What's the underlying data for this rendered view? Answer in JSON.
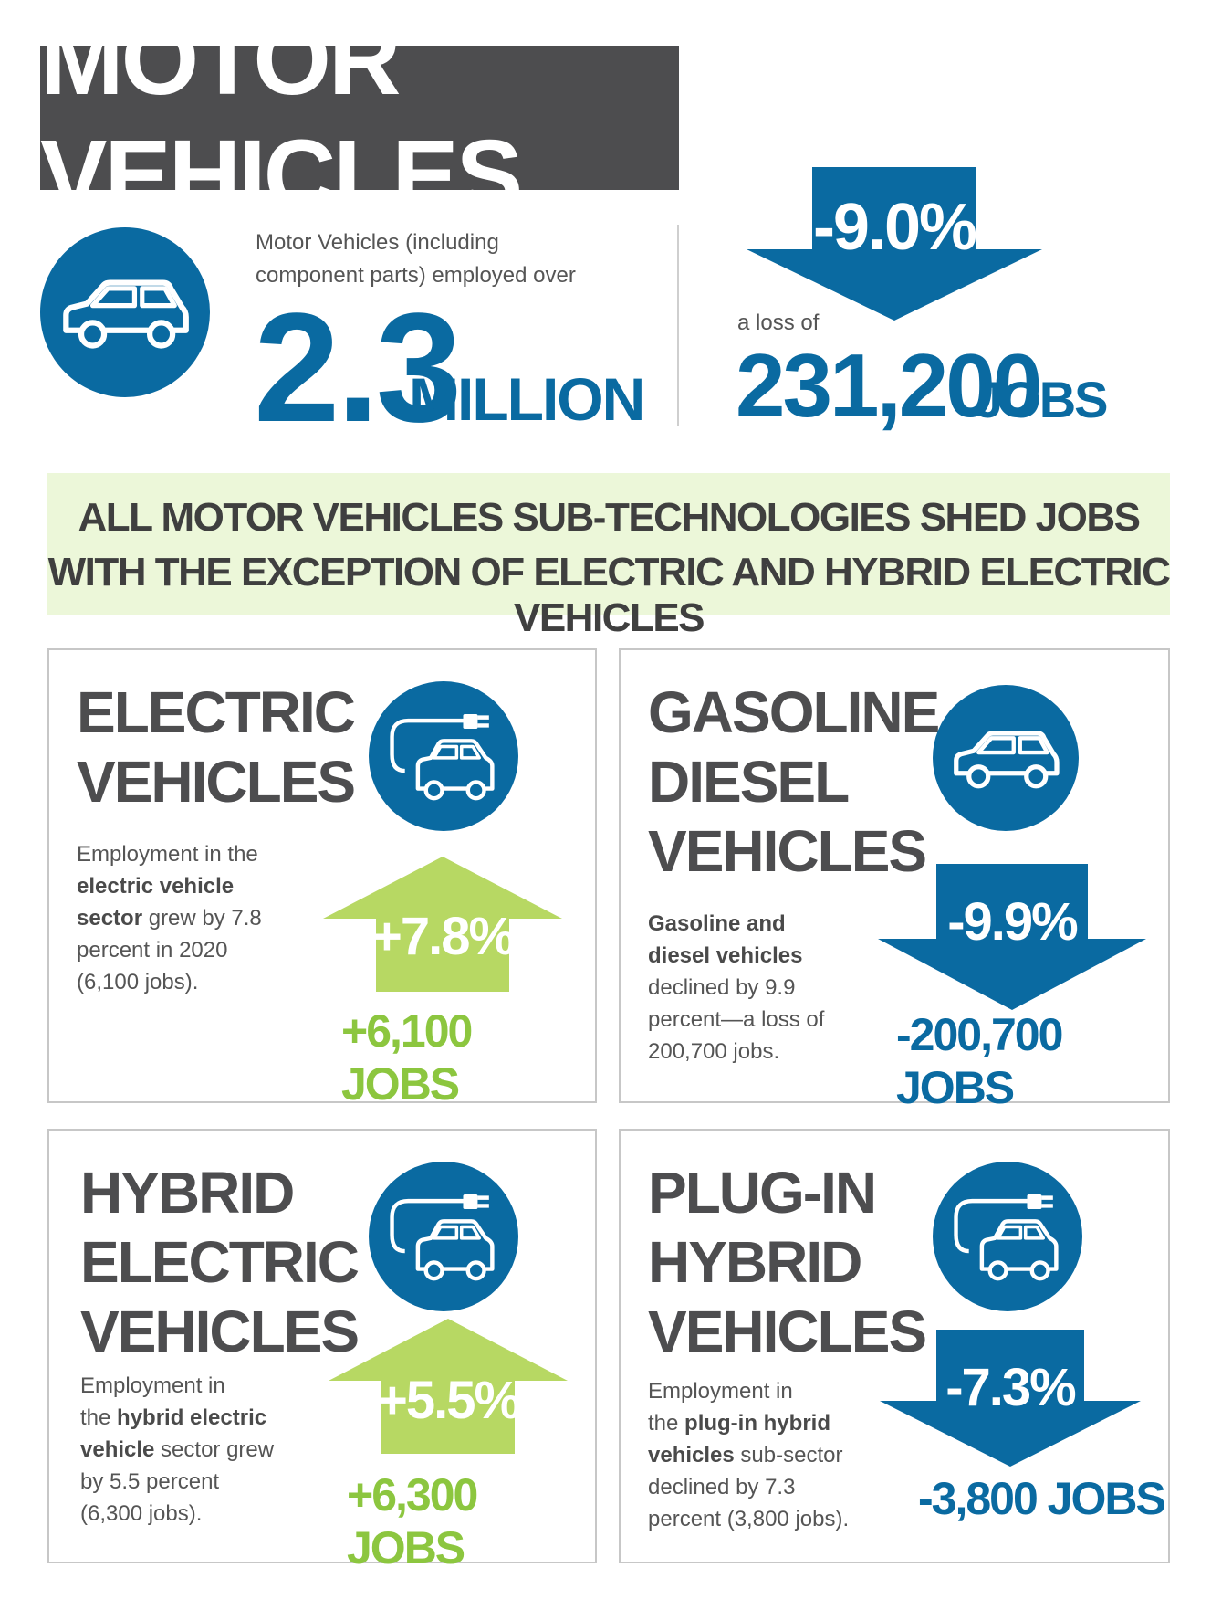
{
  "title": "MOTOR VEHICLES",
  "colors": {
    "blue": "#0a6aa1",
    "green": "#8cc63f",
    "dark_gray": "#4d4d4f",
    "banner_bg": "#ecf7d9"
  },
  "summary": {
    "icon": "car-icon",
    "intro_line1": "Motor Vehicles (including",
    "intro_line2": "component parts) employed over",
    "employment_value": "2.3",
    "employment_unit": "MILLION",
    "change_percent": "-9.0%",
    "loss_prefix": "a loss of",
    "loss_value": "231,200",
    "loss_unit": "JOBS"
  },
  "banner": {
    "line1": "ALL MOTOR VEHICLES SUB-TECHNOLOGIES SHED JOBS",
    "line2": "WITH THE EXCEPTION OF ELECTRIC AND HYBRID ELECTRIC VEHICLES"
  },
  "cards": {
    "electric": {
      "title_lines": [
        "ELECTRIC",
        "VEHICLES"
      ],
      "icon": "plug-car-icon",
      "desc_parts": [
        "Employment in the",
        "electric vehicle",
        "sector",
        " grew by 7.8",
        "percent in 2020",
        "(6,100 jobs)."
      ],
      "change": "+7.8%",
      "direction": "up",
      "jobs": "+6,100 JOBS"
    },
    "gasoline": {
      "title_lines": [
        "GASOLINE +",
        "DIESEL",
        "VEHICLES"
      ],
      "icon": "car-icon",
      "desc_parts": [
        "Gasoline and",
        "diesel vehicles",
        "declined by 9.9",
        "percent—a loss of",
        "200,700 jobs."
      ],
      "change": "-9.9%",
      "direction": "down",
      "jobs": "-200,700 JOBS"
    },
    "hybrid": {
      "title_lines": [
        "HYBRID",
        "ELECTRIC",
        "VEHICLES"
      ],
      "icon": "plug-car-icon",
      "desc_parts": [
        "Employment in",
        "the ",
        "hybrid electric",
        "vehicle",
        " sector grew",
        "by 5.5 percent",
        "(6,300 jobs)."
      ],
      "change": "+5.5%",
      "direction": "up",
      "jobs": "+6,300 JOBS"
    },
    "plugin": {
      "title_lines": [
        "PLUG-IN",
        "HYBRID",
        "VEHICLES"
      ],
      "icon": "plug-car-icon",
      "desc_parts": [
        "Employment in",
        "the ",
        "plug-in hybrid",
        "vehicles",
        " sub-sector",
        "declined by 7.3",
        "percent (3,800 jobs)."
      ],
      "change": "-7.3%",
      "direction": "down",
      "jobs": "-3,800 JOBS"
    }
  }
}
